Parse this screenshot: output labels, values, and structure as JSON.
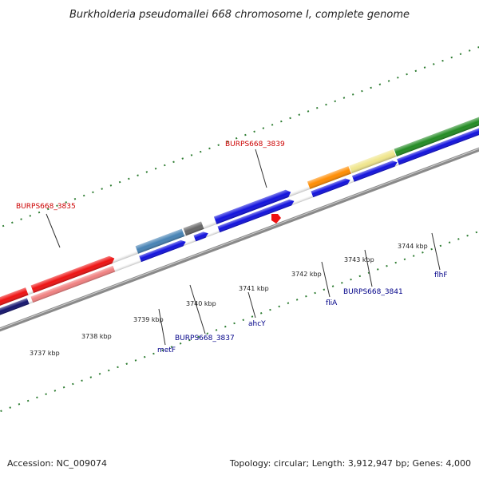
{
  "title": "Burkholderia pseudomallei 668 chromosome I, complete genome",
  "footer": {
    "accession": "Accession: NC_009074",
    "topology": "Topology: circular; Length: 3,912,947 bp; Genes: 4,000"
  },
  "colors": {
    "backbone": "#888888",
    "tick": "#2e7d32",
    "forward_gene": "#1111dd",
    "highlight_label": "#cc0000",
    "gene_label": "#000088"
  },
  "ticks": [
    "3737 kbp",
    "3738 kbp",
    "3739 kbp",
    "3740 kbp",
    "3741 kbp",
    "3742 kbp",
    "3743 kbp",
    "3744 kbp"
  ],
  "highlighted_genes": [
    "BURPS668_3839",
    "BURPS668_3835"
  ],
  "labeled_genes": [
    "metF",
    "BURPS668_3837",
    "ahcY",
    "fliA",
    "BURPS668_3841",
    "flhF"
  ]
}
